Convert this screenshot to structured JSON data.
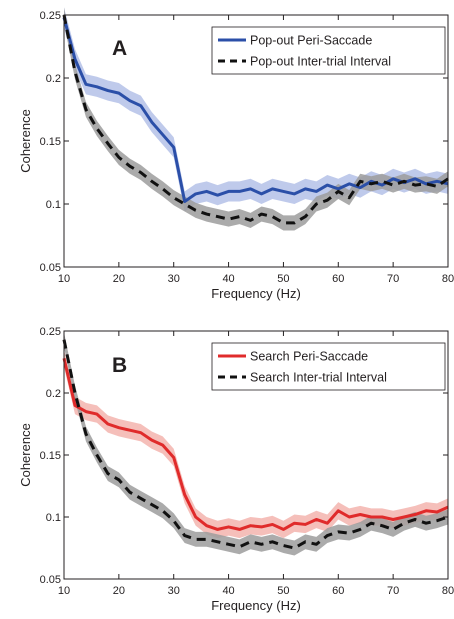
{
  "chart_data": [
    {
      "type": "line",
      "panel_letter": "A",
      "xlabel": "Frequency (Hz)",
      "ylabel": "Coherence",
      "xlim": [
        10,
        80
      ],
      "ylim": [
        0.05,
        0.25
      ],
      "xticks": [
        "10",
        "20",
        "30",
        "40",
        "50",
        "60",
        "70",
        "80"
      ],
      "yticks": [
        "0.05",
        "0.1",
        "0.15",
        "0.2",
        "0.25"
      ],
      "legend_position": "top-right",
      "grid": false,
      "x": [
        10,
        12,
        14,
        16,
        18,
        20,
        22,
        24,
        26,
        28,
        30,
        32,
        34,
        36,
        38,
        40,
        42,
        44,
        46,
        48,
        50,
        52,
        54,
        56,
        58,
        60,
        62,
        64,
        66,
        68,
        70,
        72,
        74,
        76,
        78,
        80
      ],
      "series": [
        {
          "name": "Pop-out Peri-Saccade",
          "style": "solid",
          "color": "#2b4fa8",
          "band_color": "#aab8e4",
          "values": [
            0.248,
            0.215,
            0.195,
            0.193,
            0.19,
            0.188,
            0.182,
            0.178,
            0.165,
            0.155,
            0.145,
            0.102,
            0.108,
            0.11,
            0.107,
            0.11,
            0.11,
            0.112,
            0.108,
            0.112,
            0.11,
            0.108,
            0.112,
            0.11,
            0.115,
            0.112,
            0.116,
            0.113,
            0.118,
            0.115,
            0.12,
            0.117,
            0.12,
            0.116,
            0.118,
            0.116
          ],
          "band_halfwidth": 0.008
        },
        {
          "name": "Pop-out Inter-trial Interval",
          "style": "dashed",
          "color": "#111111",
          "band_color": "#9c9c9c",
          "values": [
            0.25,
            0.205,
            0.175,
            0.16,
            0.148,
            0.137,
            0.13,
            0.125,
            0.118,
            0.112,
            0.105,
            0.1,
            0.095,
            0.092,
            0.09,
            0.088,
            0.09,
            0.087,
            0.092,
            0.09,
            0.085,
            0.085,
            0.09,
            0.1,
            0.103,
            0.11,
            0.105,
            0.118,
            0.116,
            0.118,
            0.115,
            0.118,
            0.115,
            0.116,
            0.114,
            0.12
          ],
          "band_halfwidth": 0.006
        }
      ]
    },
    {
      "type": "line",
      "panel_letter": "B",
      "xlabel": "Frequency (Hz)",
      "ylabel": "Coherence",
      "xlim": [
        10,
        80
      ],
      "ylim": [
        0.05,
        0.25
      ],
      "xticks": [
        "10",
        "20",
        "30",
        "40",
        "50",
        "60",
        "70",
        "80"
      ],
      "yticks": [
        "0.05",
        "0.1",
        "0.15",
        "0.2",
        "0.25"
      ],
      "legend_position": "top-right",
      "grid": false,
      "x": [
        10,
        12,
        14,
        16,
        18,
        20,
        22,
        24,
        26,
        28,
        30,
        32,
        34,
        36,
        38,
        40,
        42,
        44,
        46,
        48,
        50,
        52,
        54,
        56,
        58,
        60,
        62,
        64,
        66,
        68,
        70,
        72,
        74,
        76,
        78,
        80
      ],
      "series": [
        {
          "name": "Search Peri-Saccade",
          "style": "solid",
          "color": "#e02b2b",
          "band_color": "#f2aaa3",
          "values": [
            0.228,
            0.19,
            0.185,
            0.183,
            0.175,
            0.172,
            0.17,
            0.168,
            0.162,
            0.158,
            0.148,
            0.118,
            0.1,
            0.093,
            0.09,
            0.092,
            0.09,
            0.093,
            0.092,
            0.094,
            0.09,
            0.095,
            0.094,
            0.098,
            0.095,
            0.105,
            0.1,
            0.102,
            0.1,
            0.1,
            0.098,
            0.1,
            0.102,
            0.105,
            0.104,
            0.108
          ],
          "band_halfwidth": 0.007
        },
        {
          "name": "Search Inter-trial Interval",
          "style": "dashed",
          "color": "#111111",
          "band_color": "#9c9c9c",
          "values": [
            0.243,
            0.2,
            0.167,
            0.15,
            0.135,
            0.13,
            0.12,
            0.115,
            0.11,
            0.105,
            0.097,
            0.085,
            0.082,
            0.082,
            0.08,
            0.078,
            0.076,
            0.08,
            0.078,
            0.08,
            0.077,
            0.075,
            0.08,
            0.078,
            0.085,
            0.088,
            0.087,
            0.09,
            0.095,
            0.093,
            0.09,
            0.095,
            0.098,
            0.095,
            0.097,
            0.1
          ],
          "band_halfwidth": 0.006
        }
      ]
    }
  ]
}
